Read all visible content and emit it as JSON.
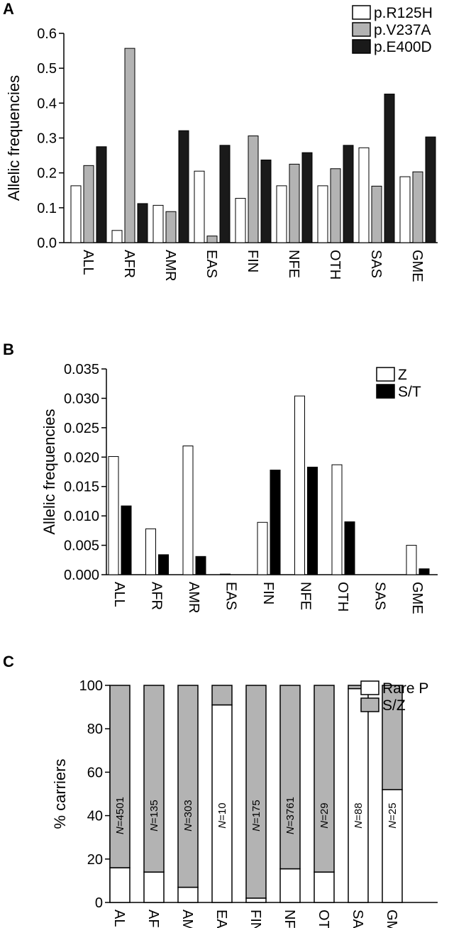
{
  "chart_data": [
    {
      "panel": "A",
      "type": "bar",
      "ylabel": "Allelic frequencies",
      "ylim": [
        0,
        0.6
      ],
      "yticks": [
        "0.0",
        "0.1",
        "0.2",
        "0.3",
        "0.4",
        "0.5",
        "0.6"
      ],
      "categories": [
        "ALL",
        "AFR",
        "AMR",
        "EAS",
        "FIN",
        "NFE",
        "OTH",
        "SAS",
        "GME"
      ],
      "legend_position": "top-right",
      "series": [
        {
          "name": "p.R125H",
          "color": "#ffffff",
          "values": [
            0.163,
            0.035,
            0.107,
            0.205,
            0.127,
            0.163,
            0.163,
            0.272,
            0.189
          ]
        },
        {
          "name": "p.V237A",
          "color": "#b3b3b3",
          "values": [
            0.221,
            0.557,
            0.089,
            0.019,
            0.306,
            0.225,
            0.212,
            0.162,
            0.203
          ]
        },
        {
          "name": "p.E400D",
          "color": "#1a1a1a",
          "values": [
            0.275,
            0.112,
            0.321,
            0.279,
            0.237,
            0.258,
            0.279,
            0.426,
            0.303
          ]
        }
      ]
    },
    {
      "panel": "B",
      "type": "bar",
      "ylabel": "Allelic frequencies",
      "ylim": [
        0,
        0.035
      ],
      "yticks": [
        "0.000",
        "0.005",
        "0.010",
        "0.015",
        "0.020",
        "0.025",
        "0.030",
        "0.035"
      ],
      "categories": [
        "ALL",
        "AFR",
        "AMR",
        "EAS",
        "FIN",
        "NFE",
        "OTH",
        "SAS",
        "GME"
      ],
      "legend_position": "top-right",
      "series": [
        {
          "name": "Z",
          "color": "#ffffff",
          "values": [
            0.0201,
            0.0078,
            0.0219,
            0.0001,
            0.0089,
            0.0304,
            0.0187,
            0.0,
            0.005
          ]
        },
        {
          "name": "S/T",
          "color": "#000000",
          "values": [
            0.0117,
            0.0034,
            0.0031,
            0.0,
            0.0178,
            0.0183,
            0.009,
            0.0,
            0.001
          ]
        }
      ]
    },
    {
      "panel": "C",
      "type": "bar",
      "stacked": true,
      "ylabel": "% carriers",
      "ylim": [
        0,
        100
      ],
      "yticks": [
        "0",
        "20",
        "40",
        "60",
        "80",
        "100"
      ],
      "categories": [
        "ALL",
        "AFR",
        "AMR",
        "EAS",
        "FIN",
        "NFE",
        "OTH",
        "SAS",
        "GME"
      ],
      "legend_position": "top-right",
      "n_labels": [
        "N=4501",
        "N=135",
        "N=303",
        "N=10",
        "N=175",
        "N=3761",
        "N=29",
        "N=88",
        "N=25"
      ],
      "series": [
        {
          "name": "Rare P",
          "color": "#ffffff",
          "values": [
            16,
            14,
            7,
            91,
            2,
            15.5,
            14,
            98.5,
            52
          ]
        },
        {
          "name": "S/Z",
          "color": "#b3b3b3",
          "values": [
            84,
            86,
            93,
            9,
            98,
            84.5,
            86,
            1.5,
            48
          ]
        }
      ]
    }
  ]
}
